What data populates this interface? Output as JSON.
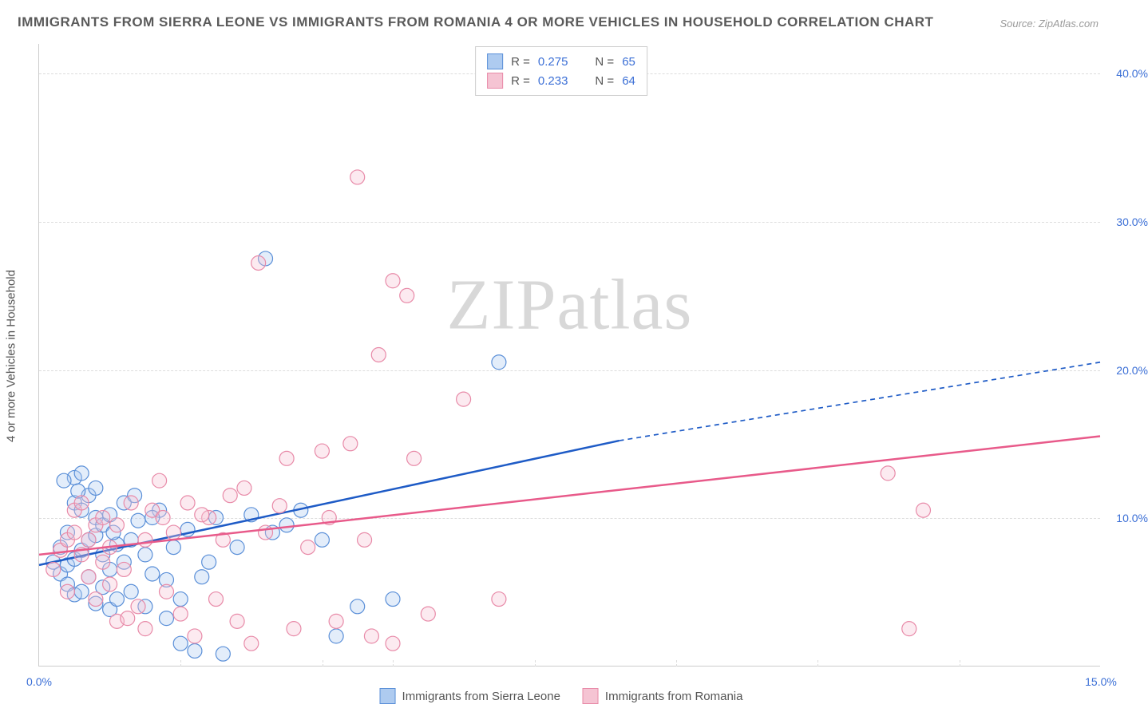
{
  "title": "IMMIGRANTS FROM SIERRA LEONE VS IMMIGRANTS FROM ROMANIA 4 OR MORE VEHICLES IN HOUSEHOLD CORRELATION CHART",
  "source": "Source: ZipAtlas.com",
  "ylabel": "4 or more Vehicles in Household",
  "watermark_a": "ZIP",
  "watermark_b": "atlas",
  "chart": {
    "type": "scatter",
    "background_color": "#ffffff",
    "grid_color": "#dddddd",
    "axis_color": "#cccccc",
    "tick_color": "#3b6fd6",
    "label_color": "#555555",
    "title_color": "#5a5a5a",
    "title_fontsize": 17,
    "label_fontsize": 15,
    "tick_fontsize": 14,
    "xlim": [
      0,
      15
    ],
    "ylim": [
      0,
      42
    ],
    "xticks": [
      {
        "v": 0,
        "label": "0.0%"
      },
      {
        "v": 15,
        "label": "15.0%"
      }
    ],
    "xtick_minor": [
      2,
      4,
      5,
      7,
      9,
      11,
      13
    ],
    "yticks": [
      {
        "v": 10,
        "label": "10.0%"
      },
      {
        "v": 20,
        "label": "20.0%"
      },
      {
        "v": 30,
        "label": "30.0%"
      },
      {
        "v": 40,
        "label": "40.0%"
      }
    ],
    "marker_radius": 9,
    "marker_fill_opacity": 0.35,
    "marker_stroke_width": 1.2,
    "line_width": 2.5,
    "series": [
      {
        "name": "Immigrants from Sierra Leone",
        "color_fill": "#aecbf0",
        "color_stroke": "#5a8fd8",
        "line_color": "#1e5bc6",
        "R": "0.275",
        "N": "65",
        "trend_start": [
          0,
          6.8
        ],
        "trend_solid_end": [
          8.2,
          15.2
        ],
        "trend_dash_end": [
          15,
          20.5
        ],
        "points": [
          [
            0.2,
            7.0
          ],
          [
            0.3,
            6.2
          ],
          [
            0.3,
            8.0
          ],
          [
            0.4,
            5.5
          ],
          [
            0.4,
            6.8
          ],
          [
            0.4,
            9.0
          ],
          [
            0.5,
            4.8
          ],
          [
            0.5,
            7.2
          ],
          [
            0.5,
            11.0
          ],
          [
            0.5,
            12.7
          ],
          [
            0.6,
            5.0
          ],
          [
            0.6,
            7.8
          ],
          [
            0.6,
            10.5
          ],
          [
            0.6,
            13.0
          ],
          [
            0.7,
            6.0
          ],
          [
            0.7,
            8.5
          ],
          [
            0.7,
            11.5
          ],
          [
            0.8,
            4.2
          ],
          [
            0.8,
            8.8
          ],
          [
            0.8,
            10.0
          ],
          [
            0.9,
            5.3
          ],
          [
            0.9,
            7.5
          ],
          [
            0.9,
            9.5
          ],
          [
            1.0,
            3.8
          ],
          [
            1.0,
            6.5
          ],
          [
            1.0,
            10.2
          ],
          [
            1.1,
            4.5
          ],
          [
            1.1,
            8.2
          ],
          [
            1.2,
            7.0
          ],
          [
            1.2,
            11.0
          ],
          [
            1.3,
            5.0
          ],
          [
            1.3,
            8.5
          ],
          [
            1.4,
            9.8
          ],
          [
            1.5,
            4.0
          ],
          [
            1.5,
            7.5
          ],
          [
            1.6,
            6.2
          ],
          [
            1.7,
            10.5
          ],
          [
            1.8,
            3.2
          ],
          [
            1.8,
            5.8
          ],
          [
            1.9,
            8.0
          ],
          [
            2.0,
            1.5
          ],
          [
            2.0,
            4.5
          ],
          [
            2.1,
            9.2
          ],
          [
            2.2,
            1.0
          ],
          [
            2.3,
            6.0
          ],
          [
            2.5,
            10.0
          ],
          [
            2.6,
            0.8
          ],
          [
            2.8,
            8.0
          ],
          [
            3.0,
            10.2
          ],
          [
            3.2,
            27.5
          ],
          [
            3.5,
            9.5
          ],
          [
            3.7,
            10.5
          ],
          [
            4.0,
            8.5
          ],
          [
            4.2,
            2.0
          ],
          [
            5.0,
            4.5
          ],
          [
            6.5,
            20.5
          ],
          [
            0.35,
            12.5
          ],
          [
            0.55,
            11.8
          ],
          [
            0.8,
            12.0
          ],
          [
            1.05,
            9.0
          ],
          [
            1.35,
            11.5
          ],
          [
            1.6,
            10.0
          ],
          [
            2.4,
            7.0
          ],
          [
            3.3,
            9.0
          ],
          [
            4.5,
            4.0
          ]
        ]
      },
      {
        "name": "Immigrants from Romania",
        "color_fill": "#f5c4d3",
        "color_stroke": "#e88aa8",
        "line_color": "#e85a8a",
        "R": "0.233",
        "N": "64",
        "trend_start": [
          0,
          7.5
        ],
        "trend_solid_end": [
          15,
          15.5
        ],
        "trend_dash_end": null,
        "points": [
          [
            0.2,
            6.5
          ],
          [
            0.3,
            7.8
          ],
          [
            0.4,
            8.5
          ],
          [
            0.4,
            5.0
          ],
          [
            0.5,
            9.0
          ],
          [
            0.5,
            10.5
          ],
          [
            0.6,
            7.5
          ],
          [
            0.6,
            11.0
          ],
          [
            0.7,
            6.0
          ],
          [
            0.7,
            8.5
          ],
          [
            0.8,
            4.5
          ],
          [
            0.8,
            9.5
          ],
          [
            0.9,
            7.0
          ],
          [
            0.9,
            10.0
          ],
          [
            1.0,
            5.5
          ],
          [
            1.0,
            8.0
          ],
          [
            1.1,
            3.0
          ],
          [
            1.1,
            9.5
          ],
          [
            1.2,
            6.5
          ],
          [
            1.3,
            11.0
          ],
          [
            1.4,
            4.0
          ],
          [
            1.5,
            8.5
          ],
          [
            1.5,
            2.5
          ],
          [
            1.6,
            10.5
          ],
          [
            1.7,
            12.5
          ],
          [
            1.8,
            5.0
          ],
          [
            1.9,
            9.0
          ],
          [
            2.0,
            3.5
          ],
          [
            2.1,
            11.0
          ],
          [
            2.2,
            2.0
          ],
          [
            2.4,
            10.0
          ],
          [
            2.5,
            4.5
          ],
          [
            2.6,
            8.5
          ],
          [
            2.8,
            3.0
          ],
          [
            2.9,
            12.0
          ],
          [
            3.0,
            1.5
          ],
          [
            3.1,
            27.2
          ],
          [
            3.2,
            9.0
          ],
          [
            3.5,
            14.0
          ],
          [
            3.6,
            2.5
          ],
          [
            3.8,
            8.0
          ],
          [
            4.0,
            14.5
          ],
          [
            4.2,
            3.0
          ],
          [
            4.4,
            15.0
          ],
          [
            4.5,
            33.0
          ],
          [
            4.6,
            8.5
          ],
          [
            4.8,
            21.0
          ],
          [
            5.0,
            26.0
          ],
          [
            5.0,
            1.5
          ],
          [
            5.2,
            25.0
          ],
          [
            5.5,
            3.5
          ],
          [
            6.0,
            18.0
          ],
          [
            6.5,
            4.5
          ],
          [
            12.0,
            13.0
          ],
          [
            12.3,
            2.5
          ],
          [
            12.5,
            10.5
          ],
          [
            2.3,
            10.2
          ],
          [
            2.7,
            11.5
          ],
          [
            3.4,
            10.8
          ],
          [
            4.1,
            10.0
          ],
          [
            4.7,
            2.0
          ],
          [
            5.3,
            14.0
          ],
          [
            1.25,
            3.2
          ],
          [
            1.75,
            10.0
          ]
        ]
      }
    ]
  },
  "legend_top": {
    "rows": [
      {
        "swatch_fill": "#aecbf0",
        "swatch_stroke": "#5a8fd8",
        "r_label": "R =",
        "r_val": "0.275",
        "n_label": "N =",
        "n_val": "65"
      },
      {
        "swatch_fill": "#f5c4d3",
        "swatch_stroke": "#e88aa8",
        "r_label": "R =",
        "r_val": "0.233",
        "n_label": "N =",
        "n_val": "64"
      }
    ]
  },
  "legend_bottom": {
    "items": [
      {
        "swatch_fill": "#aecbf0",
        "swatch_stroke": "#5a8fd8",
        "label": "Immigrants from Sierra Leone"
      },
      {
        "swatch_fill": "#f5c4d3",
        "swatch_stroke": "#e88aa8",
        "label": "Immigrants from Romania"
      }
    ]
  }
}
